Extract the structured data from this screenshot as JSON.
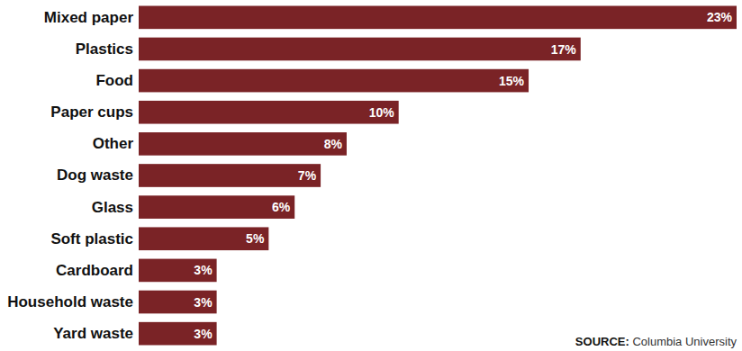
{
  "chart_data": {
    "type": "bar",
    "orientation": "horizontal",
    "categories": [
      "Mixed paper",
      "Plastics",
      "Food",
      "Paper cups",
      "Other",
      "Dog waste",
      "Glass",
      "Soft plastic",
      "Cardboard",
      "Household waste",
      "Yard waste"
    ],
    "values": [
      23,
      17,
      15,
      10,
      8,
      7,
      6,
      5,
      3,
      3,
      3
    ],
    "value_labels": [
      "23%",
      "17%",
      "15%",
      "10%",
      "8%",
      "7%",
      "6%",
      "5%",
      "3%",
      "3%",
      "3%"
    ],
    "color": "#7a2326",
    "xlim": [
      0,
      23
    ],
    "grid": false,
    "data_labels": true,
    "tick_labels": "y",
    "annotations": [
      "SOURCE: Columbia University"
    ]
  }
}
